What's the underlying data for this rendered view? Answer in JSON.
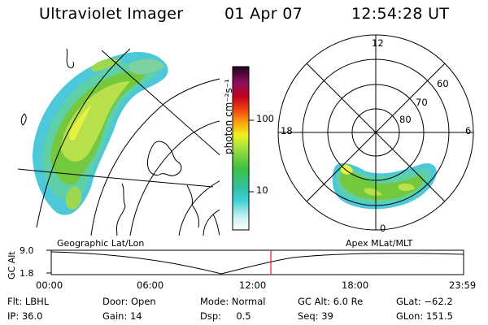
{
  "header": {
    "instrument": "Ultraviolet Imager",
    "date": "01 Apr 07",
    "time": "12:54:28 UT"
  },
  "colorbar": {
    "label": "photon cm⁻²s⁻¹",
    "ticks": [
      "100",
      "10"
    ]
  },
  "polar": {
    "mlt_labels": [
      "12",
      "18",
      "6",
      "0"
    ],
    "lat_labels": [
      "60",
      "70",
      "80"
    ]
  },
  "maps": {
    "left_caption": "Geographic Lat/Lon",
    "right_caption": "Apex MLat/MLT"
  },
  "altitude_plot": {
    "ylabel": "GC Alt",
    "yticks": [
      "9.0",
      "1.8"
    ],
    "xticks": [
      "00:00",
      "06:00",
      "12:00",
      "18:00",
      "23:59"
    ],
    "marker_color": "#e02020"
  },
  "info": {
    "row1": [
      {
        "label": "Flt:",
        "value": "LBHL"
      },
      {
        "label": "Door:",
        "value": "Open"
      },
      {
        "label": "Mode:",
        "value": "Normal"
      },
      {
        "label": "GC Alt:",
        "value": "6.0 Re"
      },
      {
        "label": "GLat:",
        "value": "−62.2"
      }
    ],
    "row2": [
      {
        "label": "IP:",
        "value": "36.0"
      },
      {
        "label": "Gain:",
        "value": "14"
      },
      {
        "label": "Dsp:",
        "value": "0.5"
      },
      {
        "label": "Seq:",
        "value": "39"
      },
      {
        "label": "GLon:",
        "value": "151.5"
      }
    ]
  }
}
